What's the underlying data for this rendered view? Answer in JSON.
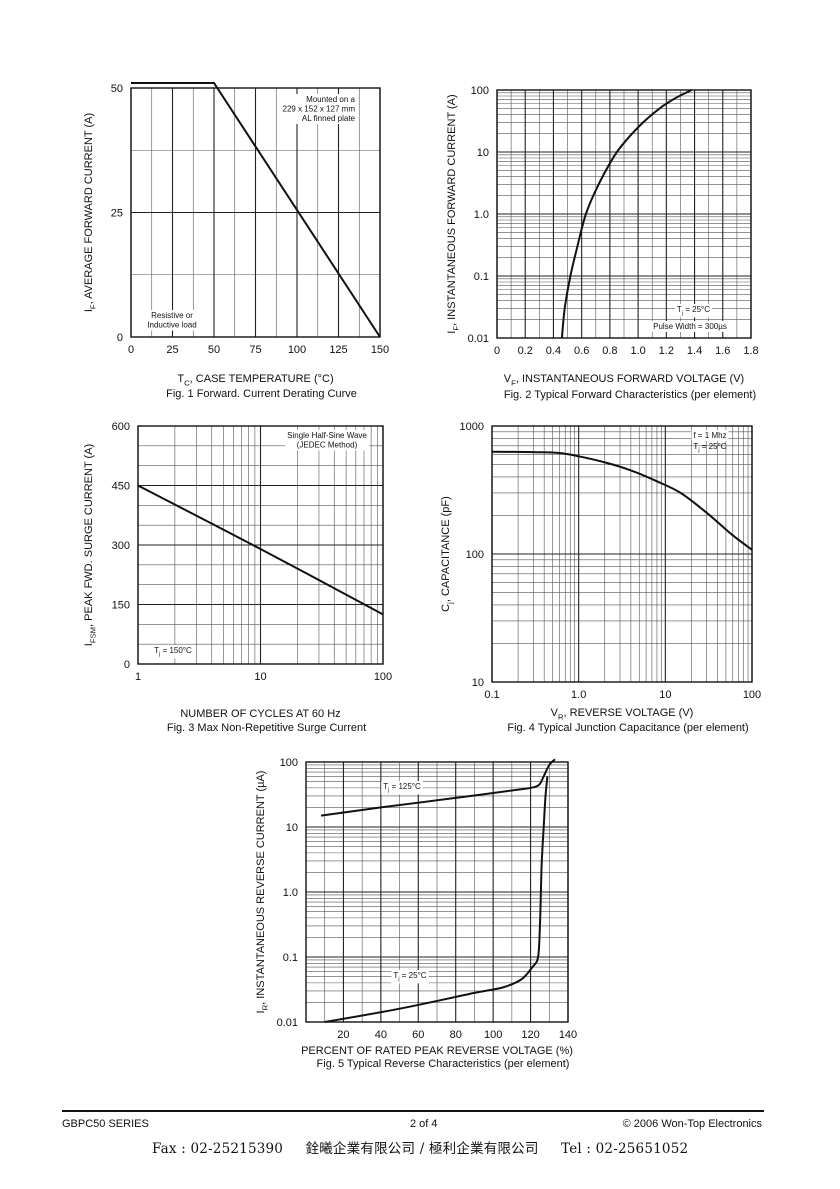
{
  "chart_data": [
    {
      "id": "fig1",
      "type": "line",
      "title": "Fig. 1  Forward. Current Derating Curve",
      "xlabel": {
        "main": "T",
        "sub": "C",
        "rest": ", CASE TEMPERATURE (°C)"
      },
      "ylabel": {
        "main": "I",
        "sub": "F",
        "rest": ",  AVERAGE FORWARD CURRENT (A)"
      },
      "xscale": "linear",
      "yscale": "linear",
      "xlim": [
        0,
        150
      ],
      "ylim": [
        0,
        50
      ],
      "xticks": [
        0,
        25,
        50,
        75,
        100,
        125,
        150
      ],
      "xticklabels": [
        "0",
        "25",
        "50",
        "75",
        "100",
        "125",
        "150"
      ],
      "yticks": [
        0,
        25,
        50
      ],
      "yticklabels": [
        "0",
        "25",
        "50"
      ],
      "grid": true,
      "series": [
        {
          "x": [
            0,
            50,
            150
          ],
          "y": [
            51,
            51,
            0
          ]
        }
      ],
      "annotations": [
        {
          "lines": [
            "Mounted on a",
            "229 x 152 x 127 mm",
            "AL finned plate"
          ],
          "pos": "top-right"
        },
        {
          "lines": [
            "Resistive or",
            "Inductive load"
          ],
          "pos": "bottom-left"
        }
      ]
    },
    {
      "id": "fig2",
      "type": "line",
      "title": "Fig. 2  Typical Forward Characteristics (per element)",
      "xlabel": {
        "main": "V",
        "sub": "F",
        "rest": ", INSTANTANEOUS FORWARD VOLTAGE (V)"
      },
      "ylabel": {
        "main": "I",
        "sub": "F",
        "rest": ", INSTANTANEOUS FORWARD CURRENT (A)"
      },
      "xscale": "linear",
      "yscale": "log",
      "xlim": [
        0,
        1.8
      ],
      "ylim": [
        0.01,
        100
      ],
      "xticks": [
        0,
        0.2,
        0.4,
        0.6,
        0.8,
        1.0,
        1.2,
        1.4,
        1.6,
        1.8
      ],
      "xticklabels": [
        "0",
        "0.2",
        "0.4",
        "0.6",
        "0.8",
        "1.0",
        "1.2",
        "1.4",
        "1.6",
        "1.8"
      ],
      "yticks": [
        0.01,
        0.1,
        1,
        10,
        100
      ],
      "yticklabels": [
        "0.01",
        "0.1",
        "1.0",
        "10",
        "100"
      ],
      "grid": true,
      "series": [
        {
          "x": [
            0.46,
            0.48,
            0.52,
            0.57,
            0.63,
            0.72,
            0.85,
            1.0,
            1.15,
            1.27,
            1.38
          ],
          "y": [
            0.01,
            0.03,
            0.1,
            0.3,
            1,
            3,
            10,
            25,
            50,
            75,
            100
          ]
        }
      ],
      "annotations": [
        {
          "main": "T",
          "sub": "j",
          "rest": " = 25°C",
          "pos": "bottom-right"
        },
        {
          "text": "Pulse Width = 300µs",
          "pos": "bottom-right"
        }
      ]
    },
    {
      "id": "fig3",
      "type": "line",
      "title": "Fig. 3  Max Non-Repetitive Surge Current",
      "xlabel": {
        "main": "NUMBER OF CYCLES AT 60 Hz",
        "sub": "",
        "rest": ""
      },
      "ylabel": {
        "main": "I",
        "sub": "FSM",
        "rest": ", PEAK FWD. SURGE CURRENT (A)"
      },
      "xscale": "log",
      "yscale": "linear",
      "xlim": [
        1,
        100
      ],
      "ylim": [
        0,
        600
      ],
      "xticks": [
        1,
        10,
        100
      ],
      "xticklabels": [
        "1",
        "10",
        "100"
      ],
      "yticks": [
        0,
        150,
        300,
        450,
        600
      ],
      "yticklabels": [
        "0",
        "150",
        "300",
        "450",
        "600"
      ],
      "grid": true,
      "series": [
        {
          "x": [
            1,
            10,
            100
          ],
          "y": [
            450,
            290,
            125
          ]
        }
      ],
      "annotations": [
        {
          "lines": [
            "Single Half-Sine Wave",
            "(JEDEC Method)"
          ],
          "pos": "top-right"
        },
        {
          "main": "T",
          "sub": "j",
          "rest": " = 150°C",
          "pos": "bottom-left"
        }
      ]
    },
    {
      "id": "fig4",
      "type": "line",
      "title": "Fig. 4  Typical Junction Capacitance (per element)",
      "xlabel": {
        "main": "V",
        "sub": "R",
        "rest": ", REVERSE VOLTAGE (V)"
      },
      "ylabel": {
        "main": "C",
        "sub": "j",
        "rest": ", CAPACITANCE (pF)"
      },
      "xscale": "log",
      "yscale": "log",
      "xlim": [
        0.1,
        100
      ],
      "ylim": [
        10,
        1000
      ],
      "xticks": [
        0.1,
        1,
        10,
        100
      ],
      "xticklabels": [
        "0.1",
        "1.0",
        "10",
        "100"
      ],
      "yticks": [
        10,
        100,
        1000
      ],
      "yticklabels": [
        "10",
        "100",
        "1000"
      ],
      "grid": true,
      "series": [
        {
          "x": [
            0.1,
            0.3,
            0.6,
            1,
            2,
            4,
            8,
            15,
            30,
            60,
            100
          ],
          "y": [
            630,
            625,
            615,
            580,
            520,
            450,
            370,
            300,
            210,
            140,
            108
          ]
        }
      ],
      "annotations": [
        {
          "text": "f = 1 Mhz",
          "pos": "top-right"
        },
        {
          "main": "T",
          "sub": "j",
          "rest": " = 25°C",
          "pos": "top-right"
        }
      ]
    },
    {
      "id": "fig5",
      "type": "line",
      "title": "Fig. 5  Typical Reverse Characteristics (per element)",
      "xlabel": {
        "main": "PERCENT OF RATED PEAK  REVERSE VOLTAGE (%)",
        "sub": "",
        "rest": ""
      },
      "ylabel": {
        "main": "I",
        "sub": "R",
        "rest": ", INSTANTANEOUS REVERSE CURRENT (µA)"
      },
      "xscale": "linear",
      "yscale": "log",
      "xlim": [
        0,
        140
      ],
      "ylim": [
        0.01,
        100
      ],
      "xticks": [
        20,
        40,
        60,
        80,
        100,
        120,
        140
      ],
      "xticklabels": [
        "20",
        "40",
        "60",
        "80",
        "100",
        "120",
        "140"
      ],
      "yticks": [
        0.01,
        0.1,
        1,
        10,
        100
      ],
      "yticklabels": [
        "0.01",
        "0.1",
        "1.0",
        "10",
        "100"
      ],
      "grid": true,
      "series": [
        {
          "name": "Tj = 125°C",
          "x": [
            8,
            40,
            80,
            115,
            120,
            123,
            125,
            127,
            130,
            133
          ],
          "y": [
            15,
            20,
            28,
            38,
            40,
            42,
            46,
            60,
            90,
            110
          ]
        },
        {
          "name": "Tj = 25°C",
          "x": [
            10,
            50,
            90,
            105,
            115,
            121,
            124,
            125,
            125.5,
            126,
            127,
            128,
            129
          ],
          "y": [
            0.01,
            0.016,
            0.028,
            0.034,
            0.045,
            0.07,
            0.1,
            0.3,
            1,
            3,
            10,
            30,
            60
          ]
        }
      ],
      "annotations": [
        {
          "main": "T",
          "sub": "j",
          "rest": " = 125°C",
          "pos": "top-left"
        },
        {
          "main": "T",
          "sub": "j",
          "rest": " = 25°C",
          "pos": "bottom-left"
        }
      ]
    }
  ],
  "footer": {
    "series": "GBPC50 SERIES",
    "page": "2 of 4",
    "copyright": "© 2006 Won-Top Electronics"
  },
  "contact": {
    "fax": "Fax : 02-25215390",
    "companies": "銓曦企業有限公司 / 極利企業有限公司",
    "tel": "Tel : 02-25651052"
  }
}
